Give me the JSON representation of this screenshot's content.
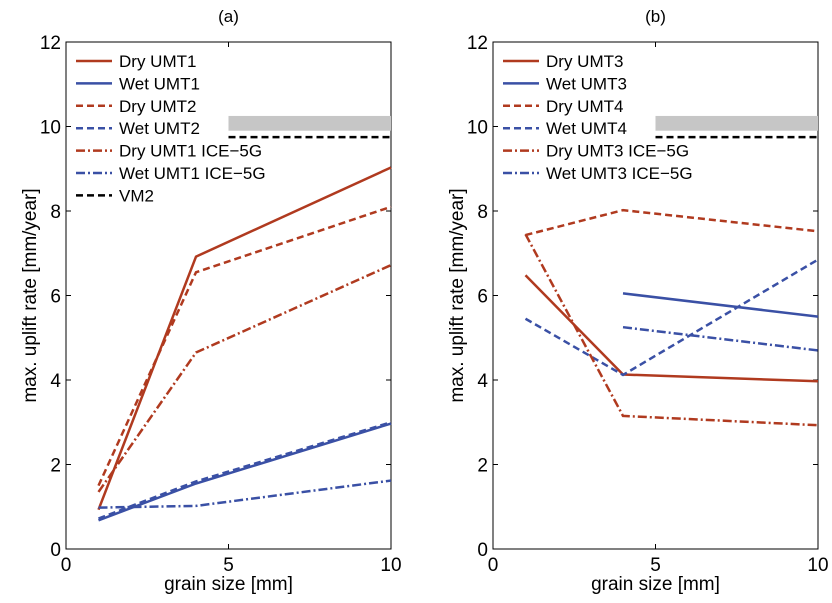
{
  "chart_data": [
    {
      "type": "line",
      "title": "(a)",
      "xlabel": "grain size [mm]",
      "ylabel": "max. uplift rate [mm/year]",
      "xlim": [
        0,
        10
      ],
      "ylim": [
        0,
        12
      ],
      "xticks": [
        0,
        5,
        10
      ],
      "yticks": [
        0,
        2,
        4,
        6,
        8,
        10,
        12
      ],
      "grid": false,
      "legend_position": "top-left",
      "series": [
        {
          "name": "Dry UMT1",
          "color": "#b03a1f",
          "style": "solid",
          "x": [
            1,
            4,
            10
          ],
          "y": [
            0.93,
            6.92,
            9.03
          ]
        },
        {
          "name": "Wet UMT1",
          "color": "#3a50a5",
          "style": "solid",
          "x": [
            1,
            4,
            10
          ],
          "y": [
            0.68,
            1.55,
            2.97
          ]
        },
        {
          "name": "Dry UMT2",
          "color": "#b03a1f",
          "style": "dashed",
          "x": [
            1,
            4,
            10
          ],
          "y": [
            1.5,
            6.55,
            8.1
          ]
        },
        {
          "name": "Wet UMT2",
          "color": "#3a50a5",
          "style": "dashed",
          "x": [
            1,
            4,
            10
          ],
          "y": [
            0.72,
            1.6,
            3.0
          ]
        },
        {
          "name": "Dry UMT1 ICE−5G",
          "color": "#b03a1f",
          "style": "dashdot",
          "x": [
            1,
            4,
            10
          ],
          "y": [
            1.35,
            4.65,
            6.72
          ]
        },
        {
          "name": "Wet UMT1 ICE−5G",
          "color": "#3a50a5",
          "style": "dashdot",
          "x": [
            1,
            4,
            10
          ],
          "y": [
            0.98,
            1.02,
            1.62
          ]
        },
        {
          "name": "VM2",
          "color": "#000000",
          "style": "dashed",
          "x": [],
          "y": []
        }
      ],
      "reference_band": {
        "x": [
          5,
          10
        ],
        "y": [
          9.9,
          10.25
        ],
        "color": "#c6c6c6"
      },
      "reference_line": {
        "x": [
          5,
          10
        ],
        "y": 9.75,
        "color": "#000000",
        "style": "dashed"
      }
    },
    {
      "type": "line",
      "title": "(b)",
      "xlabel": "grain size [mm]",
      "ylabel": "max. uplift rate [mm/year]",
      "xlim": [
        0,
        10
      ],
      "ylim": [
        0,
        12
      ],
      "xticks": [
        0,
        5,
        10
      ],
      "yticks": [
        0,
        2,
        4,
        6,
        8,
        10,
        12
      ],
      "grid": false,
      "legend_position": "top-left",
      "series": [
        {
          "name": "Dry UMT3",
          "color": "#b03a1f",
          "style": "solid",
          "x": [
            1,
            4,
            10
          ],
          "y": [
            6.48,
            4.13,
            3.97
          ]
        },
        {
          "name": "Wet UMT3",
          "color": "#3a50a5",
          "style": "solid",
          "x": [
            4,
            10
          ],
          "y": [
            6.05,
            5.5
          ]
        },
        {
          "name": "Dry UMT4",
          "color": "#b03a1f",
          "style": "dashed",
          "x": [
            1,
            4,
            10
          ],
          "y": [
            7.43,
            8.02,
            7.52
          ]
        },
        {
          "name": "Wet UMT4",
          "color": "#3a50a5",
          "style": "dashed",
          "x": [
            1,
            4,
            10
          ],
          "y": [
            5.45,
            4.12,
            6.85
          ]
        },
        {
          "name": "Dry UMT3 ICE−5G",
          "color": "#b03a1f",
          "style": "dashdot",
          "x": [
            1,
            4,
            10
          ],
          "y": [
            7.45,
            3.15,
            2.93
          ]
        },
        {
          "name": "Wet UMT3 ICE−5G",
          "color": "#3a50a5",
          "style": "dashdot",
          "x": [
            4,
            10
          ],
          "y": [
            5.25,
            4.7
          ]
        }
      ],
      "reference_band": {
        "x": [
          5,
          10
        ],
        "y": [
          9.9,
          10.25
        ],
        "color": "#c6c6c6"
      },
      "reference_line": {
        "x": [
          5,
          10
        ],
        "y": 9.75,
        "color": "#000000",
        "style": "dashed"
      }
    }
  ]
}
